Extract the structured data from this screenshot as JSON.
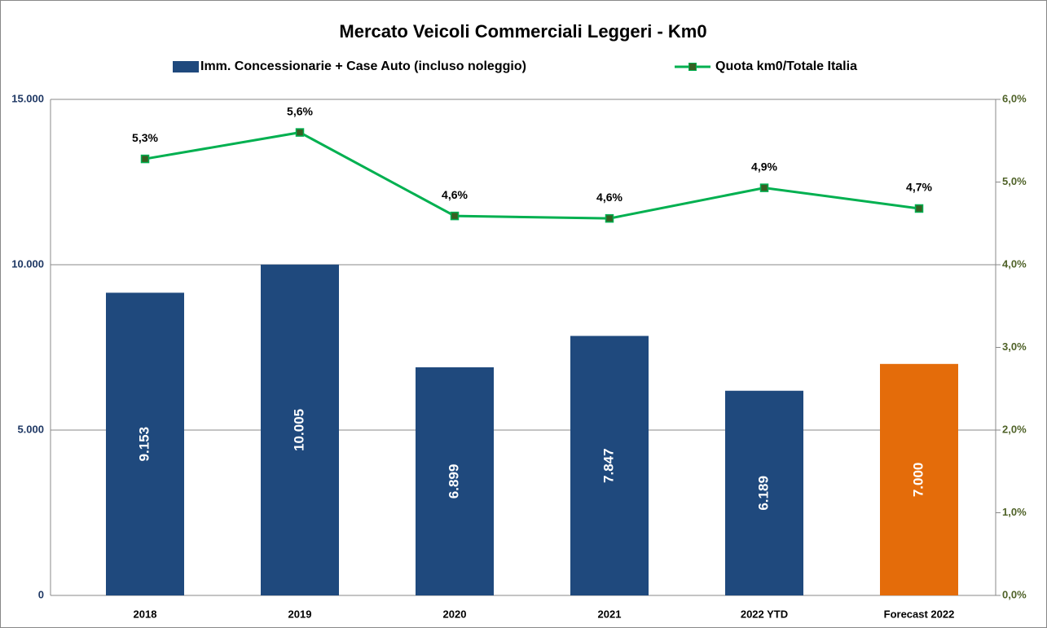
{
  "chart_data": {
    "type": "bar_line",
    "title": "Mercato Veicoli Commerciali Leggeri - Km0",
    "categories": [
      "2018",
      "2019",
      "2020",
      "2021",
      "2022 YTD",
      "Forecast 2022"
    ],
    "series": [
      {
        "name": "Imm. Concessionarie + Case Auto (incluso noleggio)",
        "type": "bar",
        "color": "#1f497d",
        "colors": [
          "#1f497d",
          "#1f497d",
          "#1f497d",
          "#1f497d",
          "#1f497d",
          "#e46c0a"
        ],
        "values": [
          9153,
          10005,
          6899,
          7847,
          6189,
          7000
        ],
        "value_labels": [
          "9.153",
          "10.005",
          "6.899",
          "7.847",
          "6.189",
          "7.000"
        ]
      },
      {
        "name": "Quota km0/Totale Italia",
        "type": "line",
        "axis": "y2",
        "color": "#00b050",
        "marker_color": "#376023",
        "values": [
          5.28,
          5.6,
          4.59,
          4.56,
          4.93,
          4.68
        ],
        "value_labels": [
          "5,3%",
          "5,6%",
          "4,6%",
          "4,6%",
          "4,9%",
          "4,7%"
        ]
      }
    ],
    "ylim": [
      0,
      15000
    ],
    "yticks": [
      0,
      {
        "value": 5000,
        "label": "5.000"
      },
      {
        "value": 10000,
        "label": "10.000"
      },
      {
        "value": 15000,
        "label": "15.000"
      }
    ],
    "y2lim": [
      0,
      6
    ],
    "y2ticks": [
      {
        "value": 0,
        "label": "0,0%"
      },
      {
        "value": 1,
        "label": "1,0%"
      },
      {
        "value": 2,
        "label": "2,0%"
      },
      {
        "value": 3,
        "label": "3,0%"
      },
      {
        "value": 4,
        "label": "4,0%"
      },
      {
        "value": 5,
        "label": "5,0%"
      },
      {
        "value": 6,
        "label": "6,0%"
      }
    ],
    "grid": true
  }
}
